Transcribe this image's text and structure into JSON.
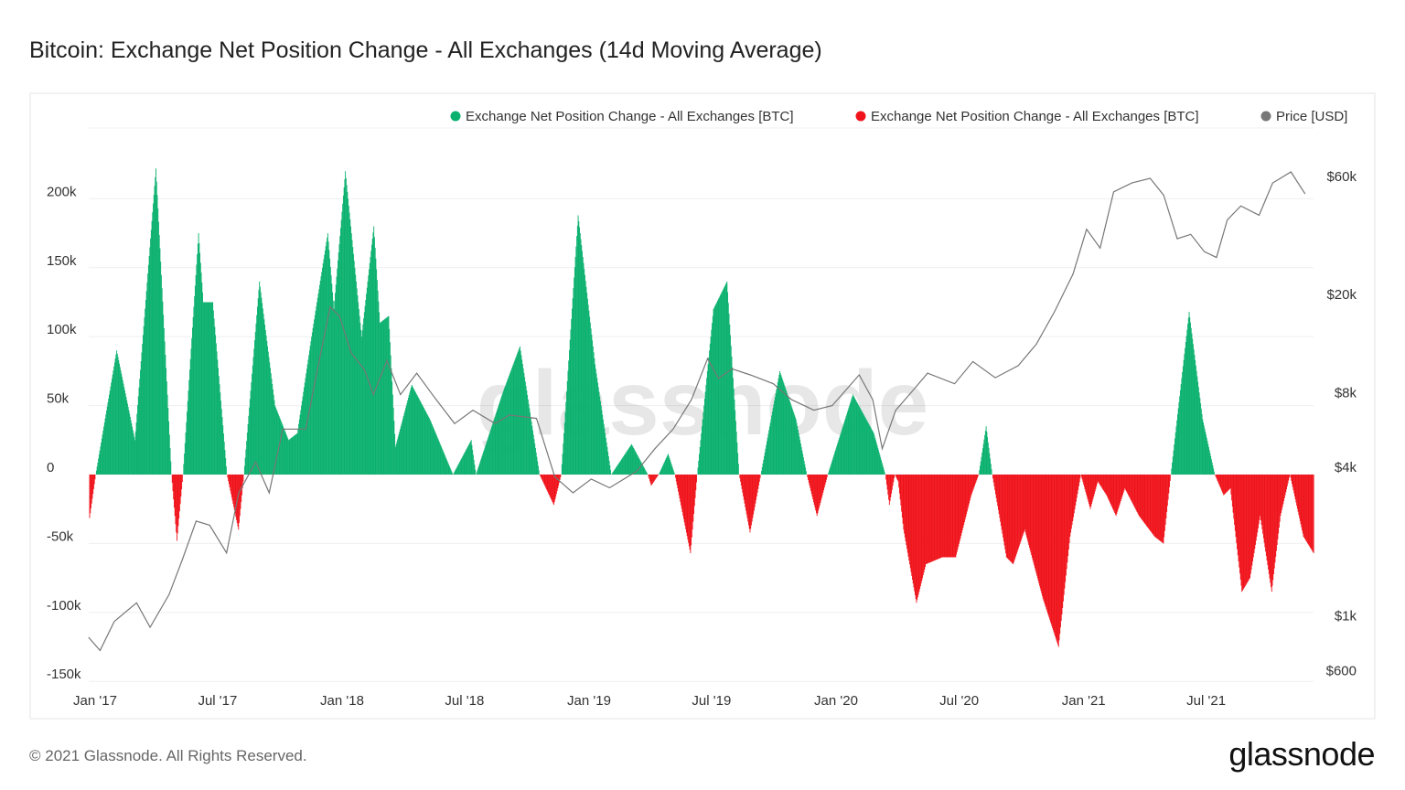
{
  "header": {
    "title": "Bitcoin: Exchange Net Position Change - All Exchanges (14d Moving Average)"
  },
  "footer": {
    "copyright": "© 2021 Glassnode. All Rights Reserved.",
    "logo": "glassnode"
  },
  "watermark": "glassnode",
  "chart_data": {
    "type": "bar",
    "title": "Bitcoin: Exchange Net Position Change - All Exchanges (14d Moving Average)",
    "colors": {
      "positive": "#0bb16f",
      "negative": "#f0131b",
      "price": "#777777"
    },
    "legend": {
      "placement": "top-right",
      "items": [
        {
          "label": "Exchange Net Position Change - All Exchanges [BTC]",
          "color": "#0bb16f"
        },
        {
          "label": "Exchange Net Position Change - All Exchanges [BTC]",
          "color": "#f0131b"
        },
        {
          "label": "Price [USD]",
          "color": "#777777"
        }
      ]
    },
    "x_axis": {
      "range": [
        "2016-12-25",
        "2021-12-09"
      ],
      "ticks": [
        {
          "label": "Jan '17",
          "date": "2017-01-01"
        },
        {
          "label": "Jul '17",
          "date": "2017-07-01"
        },
        {
          "label": "Jan '18",
          "date": "2018-01-01"
        },
        {
          "label": "Jul '18",
          "date": "2018-07-01"
        },
        {
          "label": "Jan '19",
          "date": "2019-01-01"
        },
        {
          "label": "Jul '19",
          "date": "2019-07-01"
        },
        {
          "label": "Jan '20",
          "date": "2020-01-01"
        },
        {
          "label": "Jul '20",
          "date": "2020-07-01"
        },
        {
          "label": "Jan '21",
          "date": "2021-01-01"
        },
        {
          "label": "Jul '21",
          "date": "2021-07-01"
        }
      ]
    },
    "y_left": {
      "range": [
        -150000,
        250000
      ],
      "grid": true,
      "ticks": [
        {
          "label": "200k",
          "value": 200000
        },
        {
          "label": "150k",
          "value": 150000
        },
        {
          "label": "100k",
          "value": 100000
        },
        {
          "label": "50k",
          "value": 50000
        },
        {
          "label": "0",
          "value": 0
        },
        {
          "label": "-50k",
          "value": -50000
        },
        {
          "label": "-100k",
          "value": -100000
        },
        {
          "label": "-150k",
          "value": -150000
        }
      ]
    },
    "y_right": {
      "scale": "log",
      "ticks": [
        {
          "label": "$60k",
          "value": 60000
        },
        {
          "label": "$20k",
          "value": 20000
        },
        {
          "label": "$8k",
          "value": 8000
        },
        {
          "label": "$4k",
          "value": 4000
        },
        {
          "label": "$1k",
          "value": 1000
        },
        {
          "label": "$600",
          "value": 600
        }
      ]
    },
    "net_position": [
      [
        "2016-12-25",
        -35000
      ],
      [
        "2017-01-04",
        0
      ],
      [
        "2017-02-04",
        90000
      ],
      [
        "2017-03-03",
        25000
      ],
      [
        "2017-04-03",
        222000
      ],
      [
        "2017-04-26",
        0
      ],
      [
        "2017-05-04",
        -48000
      ],
      [
        "2017-05-13",
        0
      ],
      [
        "2017-06-05",
        175000
      ],
      [
        "2017-06-12",
        125000
      ],
      [
        "2017-06-26",
        125000
      ],
      [
        "2017-07-17",
        0
      ],
      [
        "2017-08-03",
        -40000
      ],
      [
        "2017-08-11",
        0
      ],
      [
        "2017-09-03",
        140000
      ],
      [
        "2017-09-26",
        50000
      ],
      [
        "2017-10-16",
        25000
      ],
      [
        "2017-10-29",
        30000
      ],
      [
        "2017-11-19",
        100000
      ],
      [
        "2017-12-13",
        175000
      ],
      [
        "2017-12-22",
        120000
      ],
      [
        "2018-01-08",
        220000
      ],
      [
        "2018-02-01",
        100000
      ],
      [
        "2018-02-19",
        180000
      ],
      [
        "2018-02-28",
        110000
      ],
      [
        "2018-03-13",
        115000
      ],
      [
        "2018-03-23",
        20000
      ],
      [
        "2018-04-16",
        65000
      ],
      [
        "2018-05-13",
        40000
      ],
      [
        "2018-06-16",
        0
      ],
      [
        "2018-07-13",
        25000
      ],
      [
        "2018-07-20",
        0
      ],
      [
        "2018-08-29",
        60000
      ],
      [
        "2018-09-23",
        93000
      ],
      [
        "2018-10-22",
        0
      ],
      [
        "2018-11-12",
        -22000
      ],
      [
        "2018-11-23",
        0
      ],
      [
        "2018-12-18",
        188000
      ],
      [
        "2019-01-12",
        80000
      ],
      [
        "2019-02-05",
        0
      ],
      [
        "2019-03-07",
        22000
      ],
      [
        "2019-03-31",
        0
      ],
      [
        "2019-04-05",
        -8000
      ],
      [
        "2019-04-16",
        0
      ],
      [
        "2019-04-30",
        15000
      ],
      [
        "2019-05-10",
        0
      ],
      [
        "2019-06-02",
        -57000
      ],
      [
        "2019-06-12",
        0
      ],
      [
        "2019-07-06",
        120000
      ],
      [
        "2019-07-26",
        140000
      ],
      [
        "2019-08-13",
        0
      ],
      [
        "2019-08-29",
        -42000
      ],
      [
        "2019-09-14",
        0
      ],
      [
        "2019-10-12",
        75000
      ],
      [
        "2019-11-05",
        40000
      ],
      [
        "2019-11-21",
        0
      ],
      [
        "2019-12-06",
        -30000
      ],
      [
        "2019-12-22",
        0
      ],
      [
        "2020-01-28",
        58000
      ],
      [
        "2020-02-28",
        30000
      ],
      [
        "2020-03-16",
        0
      ],
      [
        "2020-03-22",
        -22000
      ],
      [
        "2020-03-30",
        0
      ],
      [
        "2020-04-04",
        -5000
      ],
      [
        "2020-04-12",
        -40000
      ],
      [
        "2020-05-01",
        -93000
      ],
      [
        "2020-05-15",
        -65000
      ],
      [
        "2020-06-08",
        -60000
      ],
      [
        "2020-06-28",
        -60000
      ],
      [
        "2020-07-21",
        -15000
      ],
      [
        "2020-08-01",
        0
      ],
      [
        "2020-08-12",
        35000
      ],
      [
        "2020-08-21",
        0
      ],
      [
        "2020-09-11",
        -60000
      ],
      [
        "2020-09-21",
        -65000
      ],
      [
        "2020-10-08",
        -40000
      ],
      [
        "2020-11-04",
        -90000
      ],
      [
        "2020-11-27",
        -125000
      ],
      [
        "2020-12-14",
        -45000
      ],
      [
        "2020-12-30",
        0
      ],
      [
        "2021-01-13",
        -25000
      ],
      [
        "2021-01-24",
        -5000
      ],
      [
        "2021-02-06",
        -15000
      ],
      [
        "2021-02-20",
        -30000
      ],
      [
        "2021-03-05",
        -10000
      ],
      [
        "2021-03-26",
        -30000
      ],
      [
        "2021-04-18",
        -45000
      ],
      [
        "2021-05-01",
        -50000
      ],
      [
        "2021-05-12",
        0
      ],
      [
        "2021-06-08",
        118000
      ],
      [
        "2021-06-28",
        40000
      ],
      [
        "2021-07-16",
        0
      ],
      [
        "2021-07-29",
        -15000
      ],
      [
        "2021-08-08",
        -10000
      ],
      [
        "2021-08-25",
        -85000
      ],
      [
        "2021-09-06",
        -75000
      ],
      [
        "2021-09-21",
        -30000
      ],
      [
        "2021-10-08",
        -85000
      ],
      [
        "2021-10-21",
        -30000
      ],
      [
        "2021-11-04",
        0
      ],
      [
        "2021-11-24",
        -45000
      ],
      [
        "2021-12-09",
        -57000
      ]
    ],
    "price": [
      [
        "2016-12-25",
        820
      ],
      [
        "2017-01-11",
        725
      ],
      [
        "2017-02-01",
        950
      ],
      [
        "2017-03-06",
        1130
      ],
      [
        "2017-03-26",
        900
      ],
      [
        "2017-04-23",
        1220
      ],
      [
        "2017-05-13",
        1700
      ],
      [
        "2017-06-02",
        2420
      ],
      [
        "2017-06-22",
        2330
      ],
      [
        "2017-07-17",
        1800
      ],
      [
        "2017-08-04",
        3150
      ],
      [
        "2017-08-29",
        4200
      ],
      [
        "2017-09-18",
        3150
      ],
      [
        "2017-10-08",
        5700
      ],
      [
        "2017-11-11",
        5700
      ],
      [
        "2017-11-24",
        8700
      ],
      [
        "2017-12-17",
        17800
      ],
      [
        "2017-12-31",
        16300
      ],
      [
        "2018-01-17",
        11600
      ],
      [
        "2018-02-06",
        9900
      ],
      [
        "2018-02-19",
        7860
      ],
      [
        "2018-03-11",
        10800
      ],
      [
        "2018-03-31",
        7860
      ],
      [
        "2018-04-24",
        9600
      ],
      [
        "2018-05-21",
        7620
      ],
      [
        "2018-06-19",
        6000
      ],
      [
        "2018-07-16",
        6800
      ],
      [
        "2018-08-18",
        6000
      ],
      [
        "2018-09-08",
        6500
      ],
      [
        "2018-10-18",
        6300
      ],
      [
        "2018-11-14",
        3660
      ],
      [
        "2018-12-11",
        3150
      ],
      [
        "2019-01-07",
        3580
      ],
      [
        "2019-02-03",
        3300
      ],
      [
        "2019-03-15",
        3850
      ],
      [
        "2019-04-11",
        4750
      ],
      [
        "2019-05-08",
        5700
      ],
      [
        "2019-06-04",
        7500
      ],
      [
        "2019-06-28",
        11000
      ],
      [
        "2019-07-14",
        9150
      ],
      [
        "2019-08-03",
        10000
      ],
      [
        "2019-08-30",
        9450
      ],
      [
        "2019-10-03",
        8700
      ],
      [
        "2019-10-30",
        7500
      ],
      [
        "2019-12-02",
        6800
      ],
      [
        "2019-12-29",
        7100
      ],
      [
        "2020-02-07",
        9450
      ],
      [
        "2020-02-27",
        7500
      ],
      [
        "2020-03-12",
        4750
      ],
      [
        "2020-04-01",
        6800
      ],
      [
        "2020-04-21",
        7860
      ],
      [
        "2020-05-18",
        9600
      ],
      [
        "2020-06-27",
        8700
      ],
      [
        "2020-07-24",
        10700
      ],
      [
        "2020-08-26",
        9200
      ],
      [
        "2020-09-29",
        10300
      ],
      [
        "2020-10-26",
        12600
      ],
      [
        "2020-11-22",
        17100
      ],
      [
        "2020-12-19",
        24200
      ],
      [
        "2021-01-08",
        36700
      ],
      [
        "2021-01-28",
        30800
      ],
      [
        "2021-02-17",
        52000
      ],
      [
        "2021-03-16",
        56500
      ],
      [
        "2021-04-12",
        59000
      ],
      [
        "2021-05-02",
        50400
      ],
      [
        "2021-05-22",
        33600
      ],
      [
        "2021-06-11",
        35000
      ],
      [
        "2021-07-01",
        29800
      ],
      [
        "2021-07-19",
        28200
      ],
      [
        "2021-08-04",
        40000
      ],
      [
        "2021-08-24",
        45600
      ],
      [
        "2021-09-20",
        41800
      ],
      [
        "2021-10-10",
        56500
      ],
      [
        "2021-11-06",
        62600
      ],
      [
        "2021-11-27",
        51000
      ]
    ]
  }
}
